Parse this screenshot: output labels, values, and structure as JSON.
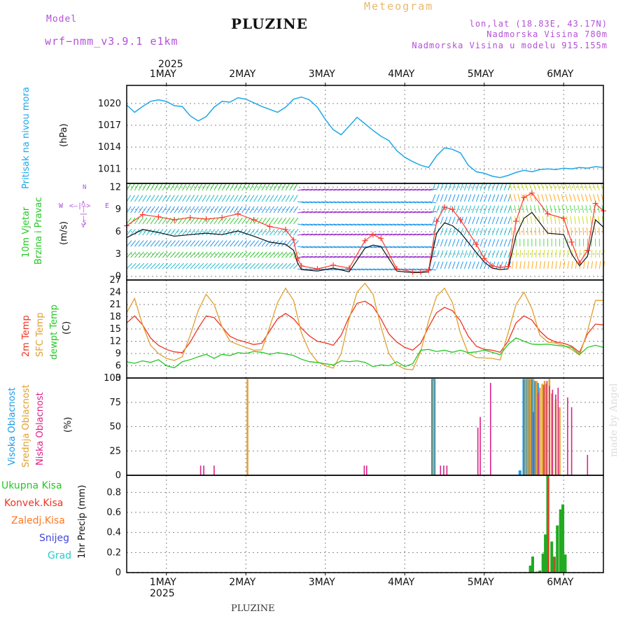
{
  "header": {
    "model_label": "Model",
    "model_name": "wrf−nmm_v3.9.1  e1km",
    "station": "PLUZINE",
    "meteogram": "Meteogram",
    "lonlat": "lon,lat (18.83E, 43.17N)",
    "altitude": "Nadmorska Visina 780m",
    "model_altitude": "Nadmorska Visina u modelu 915.155m",
    "year_top": "2025",
    "year_bottom": "2025",
    "footer_station": "PLUZINE",
    "watermark": "made by Angel"
  },
  "dates": [
    "1MAY",
    "2MAY",
    "3MAY",
    "4MAY",
    "5MAY",
    "6MAY"
  ],
  "colors": {
    "pressure": "#1ea8e8",
    "wind_speed": "#111111",
    "gust": "#ff3b30",
    "t2m": "#ee3322",
    "sfc": "#e0a030",
    "dewpt": "#22c822",
    "high_cloud": "#1a9ae6",
    "mid_cloud": "#e0a030",
    "low_cloud": "#dd2288",
    "total_precip": "#22aa22",
    "conv_precip": "#ee3322",
    "frz_precip": "#ff7722",
    "snow": "#4444dd",
    "hail": "#22cccc"
  },
  "panels": {
    "pressure": {
      "labels": [
        "Pritisak na nivou mora",
        "(hPa)"
      ],
      "ticks": [
        "1020",
        "1017",
        "1014",
        "1011"
      ]
    },
    "wind": {
      "labels": [
        "10m Vjetar",
        "Brzina i Pravac",
        "(m/s)"
      ],
      "ticks": [
        "12",
        "9",
        "6",
        "3",
        "0"
      ],
      "compass": {
        "w": "W",
        "e": "E",
        "n": "N",
        "s": "S",
        "arrows_h": "<—|—>",
        "arrows_v": "<—|—>"
      }
    },
    "temp": {
      "labels": [
        "2m Temp",
        "SFC Temp",
        "dewpt Temp",
        "(C)"
      ],
      "ticks": [
        "27",
        "24",
        "21",
        "18",
        "15",
        "12",
        "9",
        "6",
        "3"
      ]
    },
    "cloud": {
      "labels": [
        "Visoka Oblacnost",
        "Srednja Oblacnost",
        "Niska Oblacnost",
        "(%)"
      ],
      "ticks": [
        "100",
        "75",
        "50",
        "25",
        "0"
      ]
    },
    "precip": {
      "legend": [
        "Ukupna  Kisa",
        "Konvek.Kisa",
        "Zaledj.Kisa",
        "Snijeg",
        "Grad"
      ],
      "ylabel": "1hr Precip (mm)",
      "ticks": [
        "0.8",
        "0.6",
        "0.4",
        "0.2",
        "0"
      ]
    }
  },
  "chart_data": [
    {
      "type": "line",
      "title": "",
      "x_units": "day of May 2025 (1.0 = 1 May 00:00)",
      "ylim": [
        1009,
        1022.5
      ],
      "series": [
        {
          "x": [
            0.5,
            0.6,
            0.7,
            0.8,
            0.9,
            1.0,
            1.1,
            1.2,
            1.3,
            1.4,
            1.5,
            1.6,
            1.7,
            1.8,
            1.9,
            2.0,
            2.2,
            2.4,
            2.5,
            2.6,
            2.7,
            2.8,
            2.9,
            3.0,
            3.1,
            3.2,
            3.3,
            3.4,
            3.5,
            3.6,
            3.7,
            3.8,
            3.9,
            4.0,
            4.1,
            4.2,
            4.3,
            4.4,
            4.5,
            4.6,
            4.7,
            4.8,
            4.9,
            5.0,
            5.1,
            5.2,
            5.3,
            5.4,
            5.5,
            5.6,
            5.7,
            5.8,
            5.9,
            6.0,
            6.1,
            6.2,
            6.3,
            6.4,
            6.5
          ],
          "y": [
            1019.8,
            1018.8,
            1019.6,
            1020.3,
            1020.5,
            1020.3,
            1019.7,
            1019.6,
            1018.3,
            1017.6,
            1018.2,
            1019.5,
            1020.3,
            1020.2,
            1020.8,
            1020.6,
            1019.6,
            1018.8,
            1019.5,
            1020.6,
            1020.9,
            1020.5,
            1019.5,
            1017.8,
            1016.4,
            1015.7,
            1016.9,
            1018.1,
            1017.2,
            1016.3,
            1015.5,
            1014.9,
            1013.5,
            1012.6,
            1012.0,
            1011.5,
            1011.2,
            1012.8,
            1013.9,
            1013.7,
            1013.2,
            1011.5,
            1010.6,
            1010.4,
            1010.0,
            1009.8,
            1010.1,
            1010.5,
            1010.8,
            1010.6,
            1010.9,
            1011.0,
            1010.9,
            1011.1,
            1011.0,
            1011.2,
            1011.1,
            1011.3,
            1011.2
          ],
          "name": ""
        }
      ]
    },
    {
      "type": "line",
      "title": "",
      "ylim": [
        -0.5,
        12.5
      ],
      "series": [
        {
          "name": "wind speed",
          "x": [
            0.5,
            0.7,
            0.9,
            1.1,
            1.3,
            1.5,
            1.7,
            1.9,
            2.1,
            2.3,
            2.5,
            2.6,
            2.65,
            2.7,
            2.9,
            3.1,
            3.3,
            3.5,
            3.6,
            3.7,
            3.9,
            4.1,
            4.2,
            4.3,
            4.4,
            4.5,
            4.6,
            4.7,
            4.9,
            5.0,
            5.1,
            5.2,
            5.3,
            5.4,
            5.5,
            5.6,
            5.8,
            6.0,
            6.1,
            6.2,
            6.3,
            6.4,
            6.5
          ],
          "y": [
            5.2,
            6.3,
            5.9,
            5.4,
            5.6,
            5.8,
            5.6,
            6.1,
            5.4,
            4.6,
            4.3,
            3.5,
            1.8,
            0.9,
            0.7,
            1.1,
            0.6,
            3.8,
            4.2,
            4.0,
            0.7,
            0.5,
            0.5,
            0.6,
            5.8,
            7.2,
            6.8,
            5.9,
            3.2,
            1.9,
            1.1,
            0.9,
            1.0,
            5.5,
            7.8,
            8.6,
            5.8,
            5.6,
            3.0,
            1.4,
            2.7,
            7.6,
            6.6
          ]
        },
        {
          "name": "gust",
          "x": [
            0.5,
            0.7,
            0.9,
            1.1,
            1.3,
            1.5,
            1.7,
            1.9,
            2.1,
            2.3,
            2.5,
            2.6,
            2.65,
            2.7,
            2.9,
            3.1,
            3.3,
            3.5,
            3.6,
            3.7,
            3.9,
            4.1,
            4.2,
            4.3,
            4.4,
            4.5,
            4.6,
            4.7,
            4.9,
            5.0,
            5.1,
            5.2,
            5.3,
            5.4,
            5.5,
            5.6,
            5.8,
            6.0,
            6.1,
            6.2,
            6.3,
            6.4,
            6.5
          ],
          "y": [
            6.8,
            8.3,
            8.0,
            7.6,
            7.9,
            7.7,
            7.9,
            8.4,
            7.6,
            6.7,
            6.3,
            4.9,
            2.4,
            1.4,
            1.0,
            1.5,
            1.1,
            4.8,
            5.6,
            5.1,
            1.0,
            0.6,
            0.6,
            0.8,
            7.4,
            9.3,
            9.0,
            7.6,
            4.3,
            2.4,
            1.4,
            1.2,
            1.3,
            7.4,
            10.6,
            11.2,
            8.4,
            7.8,
            4.6,
            1.8,
            3.5,
            9.8,
            8.8
          ]
        }
      ]
    },
    {
      "type": "line",
      "title": "",
      "ylim": [
        3,
        27
      ],
      "series": [
        {
          "name": "2m Temp",
          "x": [
            0.5,
            0.6,
            0.7,
            0.8,
            0.9,
            1.0,
            1.1,
            1.2,
            1.3,
            1.4,
            1.5,
            1.6,
            1.7,
            1.8,
            1.9,
            2.0,
            2.1,
            2.2,
            2.3,
            2.4,
            2.5,
            2.6,
            2.7,
            2.8,
            2.9,
            3.0,
            3.1,
            3.2,
            3.3,
            3.4,
            3.5,
            3.6,
            3.7,
            3.8,
            3.9,
            4.0,
            4.1,
            4.2,
            4.3,
            4.4,
            4.5,
            4.6,
            4.7,
            4.8,
            4.9,
            5.0,
            5.1,
            5.2,
            5.3,
            5.4,
            5.5,
            5.6,
            5.7,
            5.8,
            5.9,
            6.0,
            6.1,
            6.2,
            6.3,
            6.4,
            6.5
          ],
          "y": [
            16.5,
            18.2,
            16.0,
            12.8,
            11.0,
            10.0,
            9.4,
            9.2,
            11.8,
            15.2,
            18.2,
            17.8,
            15.5,
            13.2,
            12.3,
            11.8,
            11.2,
            11.5,
            14.5,
            17.5,
            18.8,
            17.5,
            15.2,
            13.3,
            12.0,
            11.6,
            11.0,
            13.5,
            18.0,
            21.3,
            21.8,
            20.5,
            17.5,
            13.8,
            11.8,
            10.5,
            9.8,
            11.5,
            15.5,
            19.0,
            20.3,
            19.5,
            17.0,
            13.2,
            10.8,
            10.0,
            9.8,
            9.3,
            12.0,
            16.5,
            18.2,
            17.2,
            14.5,
            12.7,
            11.8,
            11.5,
            10.8,
            9.3,
            13.8,
            16.2,
            16.0
          ]
        },
        {
          "name": "SFC Temp",
          "x": [
            0.5,
            0.6,
            0.7,
            0.8,
            0.9,
            1.0,
            1.1,
            1.2,
            1.3,
            1.4,
            1.5,
            1.6,
            1.7,
            1.8,
            1.9,
            2.0,
            2.1,
            2.2,
            2.3,
            2.4,
            2.5,
            2.6,
            2.7,
            2.8,
            2.9,
            3.0,
            3.1,
            3.2,
            3.3,
            3.4,
            3.5,
            3.6,
            3.7,
            3.8,
            3.9,
            4.0,
            4.1,
            4.2,
            4.3,
            4.4,
            4.5,
            4.6,
            4.7,
            4.8,
            4.9,
            5.0,
            5.1,
            5.2,
            5.3,
            5.4,
            5.5,
            5.6,
            5.7,
            5.8,
            5.9,
            6.0,
            6.1,
            6.2,
            6.3,
            6.4,
            6.5
          ],
          "y": [
            19.0,
            22.5,
            16.0,
            11.0,
            9.0,
            7.8,
            7.3,
            8.2,
            13.5,
            19.5,
            23.5,
            21.0,
            15.5,
            12.0,
            11.2,
            10.5,
            9.8,
            9.9,
            15.5,
            21.5,
            25.0,
            22.0,
            14.0,
            9.5,
            7.0,
            6.0,
            5.4,
            9.0,
            17.5,
            24.0,
            26.2,
            23.5,
            15.5,
            9.0,
            6.2,
            5.2,
            5.0,
            9.5,
            17.0,
            23.0,
            25.0,
            21.5,
            14.0,
            9.0,
            8.0,
            7.9,
            7.8,
            7.4,
            14.0,
            21.0,
            24.0,
            20.0,
            13.5,
            11.8,
            11.5,
            11.0,
            10.0,
            8.6,
            14.5,
            22.0,
            22.0
          ]
        },
        {
          "name": "dewpt Temp",
          "x": [
            0.5,
            0.6,
            0.7,
            0.8,
            0.9,
            1.0,
            1.1,
            1.2,
            1.3,
            1.4,
            1.5,
            1.6,
            1.7,
            1.8,
            1.9,
            2.0,
            2.1,
            2.2,
            2.3,
            2.4,
            2.5,
            2.6,
            2.7,
            2.8,
            2.9,
            3.0,
            3.1,
            3.2,
            3.3,
            3.4,
            3.5,
            3.6,
            3.7,
            3.8,
            3.9,
            4.0,
            4.1,
            4.2,
            4.3,
            4.4,
            4.5,
            4.6,
            4.7,
            4.8,
            4.9,
            5.0,
            5.1,
            5.2,
            5.3,
            5.4,
            5.5,
            5.6,
            5.7,
            5.8,
            5.9,
            6.0,
            6.1,
            6.2,
            6.3,
            6.4,
            6.5
          ],
          "y": [
            7.0,
            6.6,
            7.2,
            6.8,
            7.5,
            6.0,
            5.5,
            7.0,
            7.5,
            8.2,
            8.8,
            7.8,
            8.8,
            8.5,
            9.2,
            9.0,
            9.5,
            9.3,
            8.8,
            9.2,
            8.9,
            8.5,
            7.6,
            7.0,
            6.8,
            6.5,
            6.2,
            7.2,
            7.0,
            7.2,
            6.8,
            5.8,
            6.2,
            6.0,
            7.0,
            5.8,
            6.5,
            9.8,
            10.0,
            9.5,
            9.8,
            9.3,
            9.8,
            9.2,
            9.4,
            9.8,
            9.3,
            8.7,
            11.2,
            12.8,
            12.0,
            11.3,
            11.2,
            11.3,
            11.0,
            10.8,
            10.5,
            8.8,
            10.5,
            11.0,
            10.5
          ]
        }
      ]
    },
    {
      "type": "bar",
      "title": "",
      "ylim": [
        0,
        100
      ],
      "series": [
        {
          "name": "Visoka Oblacnost",
          "x": [
            4.35,
            4.37,
            5.45,
            5.5,
            5.53,
            5.57,
            5.6,
            5.63,
            5.67
          ],
          "values": [
            99,
            99,
            5,
            99,
            99,
            99,
            99,
            97,
            95
          ]
        },
        {
          "name": "Srednja Oblacnost",
          "x": [
            2.02,
            4.36,
            5.52,
            5.55,
            5.58,
            5.62,
            5.66,
            5.7,
            5.73,
            5.76,
            5.78,
            5.82,
            5.85,
            5.9,
            5.95
          ],
          "values": [
            99,
            98,
            99,
            98,
            99,
            99,
            97,
            90,
            94,
            97,
            94,
            99,
            84,
            78,
            70
          ]
        },
        {
          "name": "Niska Oblacnost",
          "x": [
            1.43,
            1.47,
            1.6,
            3.49,
            3.52,
            4.45,
            4.49,
            4.53,
            4.92,
            4.95,
            5.08,
            5.62,
            5.68,
            5.75,
            5.79,
            5.82,
            5.86,
            5.9,
            5.93,
            6.05,
            6.1,
            6.3
          ],
          "values": [
            10,
            10,
            10,
            10,
            10,
            10,
            10,
            10,
            49,
            60,
            95,
            65,
            85,
            93,
            97,
            92,
            88,
            83,
            90,
            80,
            70,
            21
          ]
        }
      ]
    },
    {
      "type": "bar",
      "title": "",
      "ylim": [
        0,
        0.97
      ],
      "series": [
        {
          "name": "Ukupna  Kisa",
          "x": [
            5.58,
            5.61,
            5.66,
            5.7,
            5.74,
            5.77,
            5.8,
            5.85,
            5.88,
            5.92,
            5.96,
            5.99,
            6.02
          ],
          "values": [
            0.07,
            0.16,
            0.01,
            0.02,
            0.19,
            0.38,
            0.97,
            0.31,
            0.16,
            0.47,
            0.63,
            0.68,
            0.18
          ]
        },
        {
          "name": "Konvek.Kisa",
          "x": [
            5.81,
            5.89
          ],
          "values": [
            0.95,
            0.15
          ]
        }
      ]
    }
  ]
}
